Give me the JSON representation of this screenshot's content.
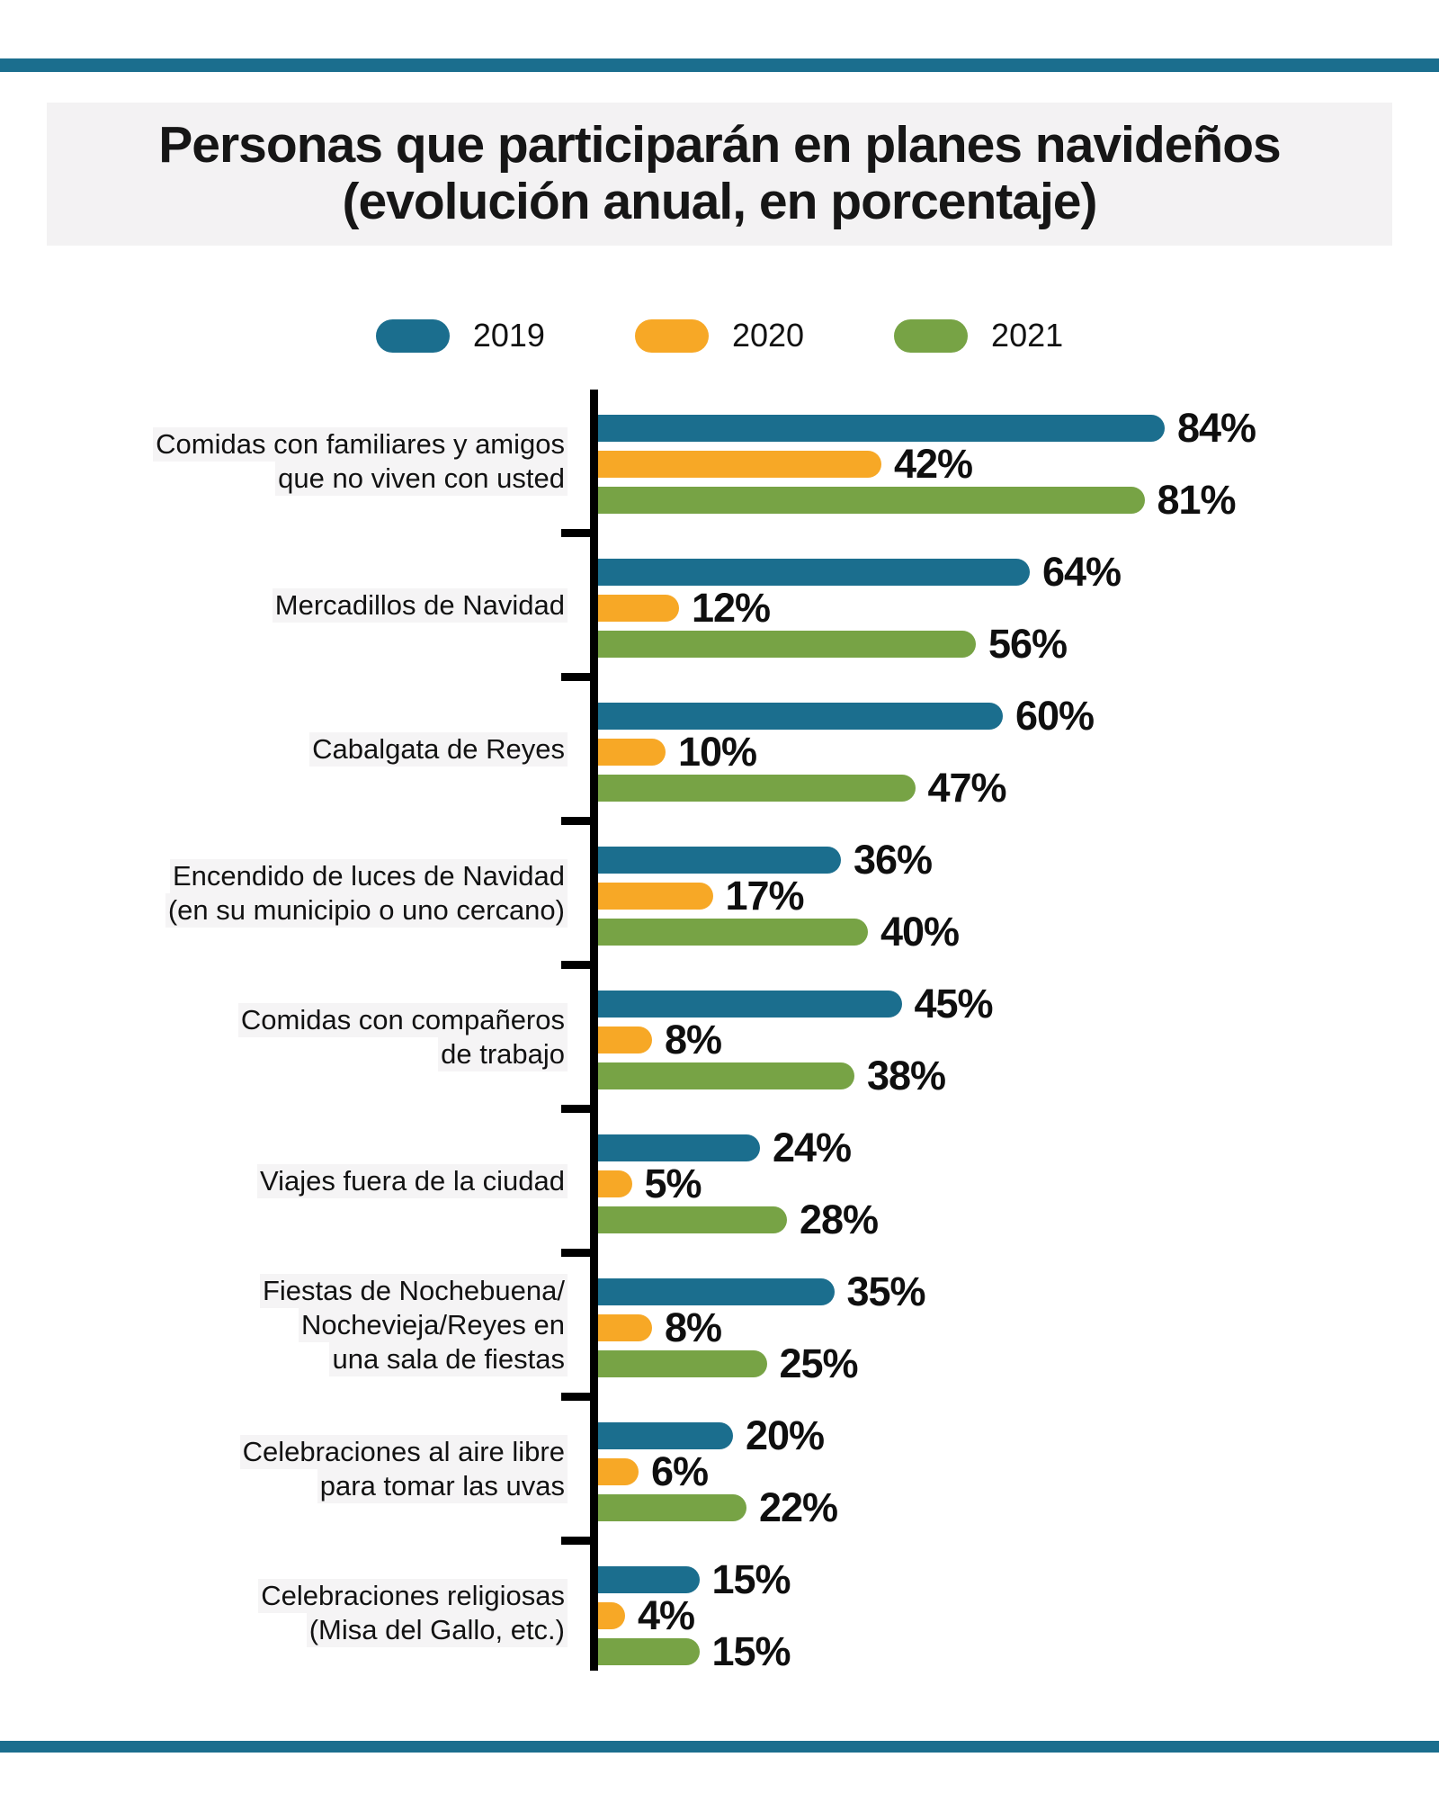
{
  "page": {
    "title_lines": [
      "Personas que participarán en planes navideños",
      "(evolución anual, en porcentaje)"
    ]
  },
  "chart_data": {
    "type": "bar",
    "orientation": "horizontal",
    "title": "Personas que participarán en planes navideños (evolución anual, en porcentaje)",
    "unit": "%",
    "xlim": [
      0,
      100
    ],
    "legend_position": "top",
    "grid": false,
    "categories": [
      {
        "label": "Comidas con familiares y amigos que no viven con usted",
        "lines": [
          "Comidas con familiares y amigos",
          "que no viven con usted"
        ]
      },
      {
        "label": "Mercadillos de Navidad",
        "lines": [
          "Mercadillos de Navidad"
        ]
      },
      {
        "label": "Cabalgata de Reyes",
        "lines": [
          "Cabalgata de Reyes"
        ]
      },
      {
        "label": "Encendido de luces de Navidad (en su municipio o uno cercano)",
        "lines": [
          "Encendido de luces de Navidad",
          "(en su municipio o uno cercano)"
        ]
      },
      {
        "label": "Comidas con compañeros de trabajo",
        "lines": [
          "Comidas con compañeros",
          "de trabajo"
        ]
      },
      {
        "label": "Viajes fuera de la ciudad",
        "lines": [
          "Viajes fuera de la ciudad"
        ]
      },
      {
        "label": "Fiestas de Nochebuena/Nochevieja/Reyes en una sala de fiestas",
        "lines": [
          "Fiestas de Nochebuena/",
          "Nochevieja/Reyes en",
          "una sala de fiestas"
        ]
      },
      {
        "label": "Celebraciones al aire libre para tomar las uvas",
        "lines": [
          "Celebraciones al aire libre",
          "para tomar las uvas"
        ]
      },
      {
        "label": "Celebraciones religiosas (Misa del Gallo, etc.)",
        "lines": [
          "Celebraciones religiosas",
          "(Misa del Gallo, etc.)"
        ]
      }
    ],
    "series": [
      {
        "name": "2019",
        "color": "#1B6E8E",
        "values": [
          84,
          64,
          60,
          36,
          45,
          24,
          35,
          20,
          15
        ]
      },
      {
        "name": "2020",
        "color": "#F7A826",
        "values": [
          42,
          12,
          10,
          17,
          8,
          5,
          8,
          6,
          4
        ]
      },
      {
        "name": "2021",
        "color": "#77A345",
        "values": [
          81,
          56,
          47,
          40,
          38,
          28,
          25,
          22,
          15
        ]
      }
    ],
    "colors": {
      "accent_rule": "#1B6E8E",
      "title_band_bg": "#F3F2F3",
      "axis": "#000000",
      "value_label": "#0F0F0F"
    }
  }
}
